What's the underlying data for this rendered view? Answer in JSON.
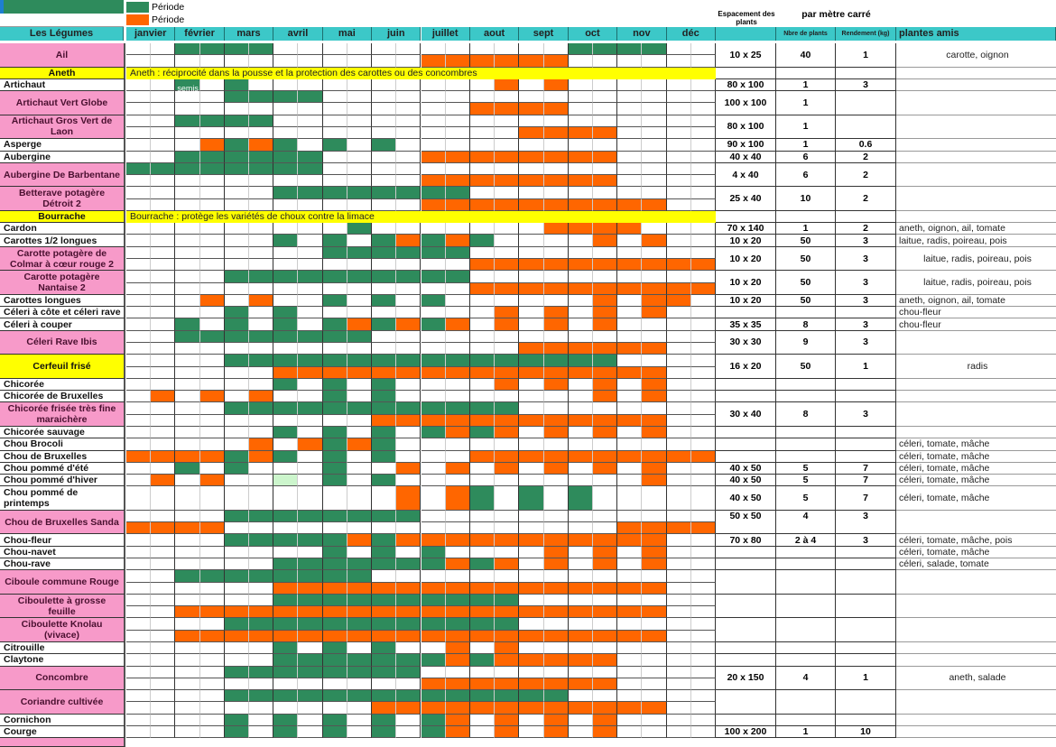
{
  "colors": {
    "green": "#2e8b5c",
    "orange": "#ff6600",
    "light_green": "#ccf5cc",
    "pink": "#f79ac9",
    "yellow": "#ffff00",
    "header": "#3cc8c8"
  },
  "legend": [
    {
      "color": "green",
      "label": "Période"
    },
    {
      "color": "orange",
      "label": "Période"
    }
  ],
  "header": {
    "vegetables": "Les Légumes",
    "months": [
      "janvier",
      "février",
      "mars",
      "avril",
      "mai",
      "juin",
      "juillet",
      "aout",
      "sept",
      "oct",
      "nov",
      "déc"
    ],
    "spacing": "Espacement des plants",
    "per_m2": "par mètre carré",
    "plants_count": "Nbre de plants",
    "yield": "Rendement (kg)",
    "friends": "plantes amis"
  },
  "rows": [
    {
      "label": "Ail",
      "style": "pink",
      "rows": [
        ".. gg gg .. .. .. .. .. .. gg gg ..",
        ".. .. .. .. .. .. oo oo oo .. .. .."
      ],
      "spacing": "10 x 25",
      "count": "40",
      "yield": "1",
      "friends": "carotte, oignon"
    },
    {
      "label": "Aneth",
      "style": "yellow",
      "note": "Aneth : réciprocité dans la pousse et la protection des carottes ou des concombres"
    },
    {
      "label": "Artichaut",
      "style": "white",
      "rows": [
        ".. g. g. .. .. .. .. .o .o .. .. .."
      ],
      "cell_text": "semis",
      "spacing": "80 x 100",
      "count": "1",
      "yield": "3"
    },
    {
      "label": "Artichaut Vert Globe",
      "style": "pink",
      "rows": [
        ".. .. gg gg .. .. .. .. .. .. .. ..",
        ".. .. .. .. .. .. .. oo oo .. .. .."
      ],
      "spacing": "100 x 100",
      "count": "1"
    },
    {
      "label": "Artichaut Gros Vert de Laon",
      "style": "pink",
      "rows": [
        ".. gg gg .. .. .. .. .. .. .. .. ..",
        ".. .. .. .. .. .. .. .. oo oo .. .."
      ],
      "spacing": "80 x 100",
      "count": "1"
    },
    {
      "label": "Asperge",
      "style": "white",
      "rows": [
        ".. .o go g. g. g. .. .. .. .. .. .."
      ],
      "spacing": "90 x 100",
      "count": "1",
      "yield": "0.6"
    },
    {
      "label": "Aubergine",
      "style": "white",
      "rows": [
        ".. gg gg gg .. .. oo oo oo oo .. .."
      ],
      "spacing": "40 x 40",
      "count": "6",
      "yield": "2"
    },
    {
      "label": "Aubergine De Barbentane",
      "style": "pink",
      "rows": [
        "gg gg gg gg .. .. .. .. .. .. .. ..",
        ".. .. .. .. .. .. oo oo oo oo .. .."
      ],
      "spacing": "4 x 40",
      "count": "6",
      "yield": "2"
    },
    {
      "label": "Betterave potagère Détroit 2",
      "style": "pink",
      "rows": [
        ".. .. .. gg gg gg gg .. .. .. .. ..",
        ".. .. .. .. .. .. oo oo oo oo oo .."
      ],
      "spacing": "25 x 40",
      "count": "10",
      "yield": "2"
    },
    {
      "label": "Bourrache",
      "style": "yellow",
      "note": "Bourrache : protège les variétés de choux contre la limace"
    },
    {
      "label": "Cardon",
      "style": "white",
      "rows": [
        ".. .. .. .. .g .. .. .. .o oo o. .."
      ],
      "spacing": "70 x 140",
      "count": "1",
      "yield": "2",
      "friends": "aneth, oignon, ail, tomate"
    },
    {
      "label": "Carottes 1/2 longues",
      "style": "white",
      "rows": [
        ".. .. .. g. g. go go g. .. .o .o .."
      ],
      "spacing": "10 x 20",
      "count": "50",
      "yield": "3",
      "friends": "laitue, radis, poireau, pois"
    },
    {
      "label": "Carotte potagère de Colmar à cœur rouge 2",
      "style": "pink",
      "rows": [
        ".. .. .. .. gg gg gg .. .. .. .. ..",
        ".. .. .. .. .. .. .. oo oo oo oo oo"
      ],
      "spacing": "10 x 20",
      "count": "50",
      "yield": "3",
      "friends": "laitue, radis, poireau, pois"
    },
    {
      "label": "Carotte potagère Nantaise 2",
      "style": "pink",
      "rows": [
        ".. .. gg gg gg gg gg .. .. .. .. ..",
        ".. .. .. .. .. .. .. oo oo oo oo oo"
      ],
      "spacing": "10 x 20",
      "count": "50",
      "yield": "3",
      "friends": "laitue, radis, poireau, pois"
    },
    {
      "label": "Carottes longues",
      "style": "white",
      "rows": [
        ".. .o .o .. g. g. g. .. .. .o .o o."
      ],
      "spacing": "10 x 20",
      "count": "50",
      "yield": "3",
      "friends": "aneth, oignon, ail, tomate"
    },
    {
      "label": "Céleri à côte et céleri rave",
      "style": "white",
      "rows": [
        ".. .. g. g. .. .. .. .o .o .o .o .."
      ],
      "friends": "chou-fleur"
    },
    {
      "label": "Céleri à couper",
      "style": "white",
      "rows": [
        ".. g. g. g. go go go .o .o .o .. .."
      ],
      "spacing": "35 x 35",
      "count": "8",
      "yield": "3",
      "friends": "chou-fleur"
    },
    {
      "label": "Céleri Rave Ibis",
      "style": "pink",
      "rows": [
        ".. gg gg gg gg .. .. .. .. .. .. ..",
        ".. .. .. .. .. .. .. .. oo oo oo .."
      ],
      "spacing": "30 x 30",
      "count": "9",
      "yield": "3"
    },
    {
      "label": "Cerfeuil frisé",
      "style": "yellow",
      "rows": [
        ".. .. gg gg gg gg gg gg gg gg .. ..",
        ".. .. .. oo oo oo oo oo oo oo oo .."
      ],
      "spacing": "16 x 20",
      "count": "50",
      "yield": "1",
      "friends": "radis"
    },
    {
      "label": "Chicorée",
      "style": "white",
      "rows": [
        ".. .. .. g. g. g. .. .o .o .o .o .."
      ]
    },
    {
      "label": "Chicorée de Bruxelles",
      "style": "white",
      "rows": [
        ".o .o .o .. g. g. .. .. .. .o .o .."
      ]
    },
    {
      "label": "Chicorée frisée très fine maraichère",
      "style": "pink",
      "rows": [
        ".. .. gg gg gg gg gg gg .. .. .. ..",
        ".. .. .. .. .. oo oo oo oo oo oo .."
      ],
      "spacing": "30 x 40",
      "count": "8",
      "yield": "3"
    },
    {
      "label": "Chicorée sauvage",
      "style": "white",
      "rows": [
        ".. .. .. g. g. g. go go .o .o .o .."
      ]
    },
    {
      "label": "Chou Brocoli",
      "style": "white",
      "rows": [
        ".. .. .o .o go g. .. .. .. .. .. .."
      ],
      "friends": "céleri, tomate, mâche"
    },
    {
      "label": "Chou de Bruxelles",
      "style": "white",
      "rows": [
        "oo oo go g. g. g. .. oo oo oo oo oo"
      ],
      "friends": "céleri, tomate, mâche"
    },
    {
      "label": "Chou pommé d'été",
      "style": "white",
      "rows": [
        ".. g. g. .. g. .o .o .o .o .o .o .."
      ],
      "spacing": "40 x 50",
      "count": "5",
      "yield": "7",
      "friends": "céleri, tomate, mâche"
    },
    {
      "label": "Chou pommé d'hiver",
      "style": "white",
      "rows": [
        ".o .o .. l. g. g. .. .. .. .. .o .."
      ],
      "spacing": "40 x 50",
      "count": "5",
      "yield": "7",
      "friends": "céleri, tomate, mâche"
    },
    {
      "label": "Chou pommé de printemps",
      "style": "white",
      "tall": true,
      "rows": [
        ".. .. .. .. .. .o .o g. g. g. .. .."
      ],
      "spacing": "40 x 50",
      "count": "5",
      "yield": "7",
      "friends": "céleri, tomate, mâche"
    },
    {
      "label": "Chou de Bruxelles Sanda",
      "style": "pink",
      "rows": [
        ".. .. gg gg gg gg .. .. .. .. .. ..",
        "oo oo .. .. .. .. .. .. .. .. oo oo"
      ],
      "spacing": "50 x 50",
      "count": "4",
      "yield": "3"
    },
    {
      "label": "Chou-fleur",
      "style": "white",
      "rows": [
        ".. .. gg gg go go oo oo oo oo oo .."
      ],
      "spacing": "70 x 80",
      "count": "2 à 4",
      "yield": "3",
      "friends": "céleri, tomate, mâche, pois"
    },
    {
      "label": "Chou-navet",
      "style": "white",
      "rows": [
        ".. .. .. .. g. g. g. .. .o .o .o .."
      ],
      "friends": "céleri, tomate, mâche"
    },
    {
      "label": "Chou-rave",
      "style": "white",
      "rows": [
        ".. .. .. gg gg gg go go .o .o .o .."
      ],
      "friends": "céleri, salade, tomate"
    },
    {
      "label": "Ciboule commune Rouge",
      "style": "pink",
      "rows": [
        ".. gg gg gg gg .. .. .. .. .. .. ..",
        ".. .. .. oo oo oo oo oo oo oo oo .."
      ]
    },
    {
      "label": "Ciboulette à grosse feuille",
      "style": "pink",
      "rows": [
        ".. .. .. gg gg gg gg gg .. .. .. ..",
        ".. oo oo oo oo oo oo oo oo oo oo .."
      ]
    },
    {
      "label": "Ciboulette Knolau (vivace)",
      "style": "pink",
      "rows": [
        ".. .. gg gg gg gg gg gg .. .. .. ..",
        ".. oo oo oo oo oo oo oo oo oo oo .."
      ]
    },
    {
      "label": "Citrouille",
      "style": "white",
      "rows": [
        ".. .. .. g. g. g. .o .o .. .. .. .."
      ]
    },
    {
      "label": "Claytone",
      "style": "white",
      "rows": [
        ".. .. .. gg gg gg go go oo oo .. .."
      ]
    },
    {
      "label": "Concombre",
      "style": "pink",
      "rows": [
        ".. .. gg gg gg gg .. .. .. .. .. ..",
        ".. .. .. .. .. .. oo oo oo oo .. .."
      ],
      "spacing": "20 x 150",
      "count": "4",
      "yield": "1",
      "friends": "aneth, salade"
    },
    {
      "label": "Coriandre cultivée",
      "style": "pink",
      "rows": [
        ".. .. gg gg gg gg gg gg gg .. .. ..",
        ".. .. .. .. .. oo oo oo oo oo oo .."
      ]
    },
    {
      "label": "Cornichon",
      "style": "white",
      "rows": [
        ".. .. g. g. g. g. go .o .o .o .. .."
      ]
    },
    {
      "label": "Courge",
      "style": "white",
      "rows": [
        ".. .. g. g. g. g. go .o .o .o .. .."
      ],
      "spacing": "100 x 200",
      "count": "1",
      "yield": "10"
    }
  ]
}
